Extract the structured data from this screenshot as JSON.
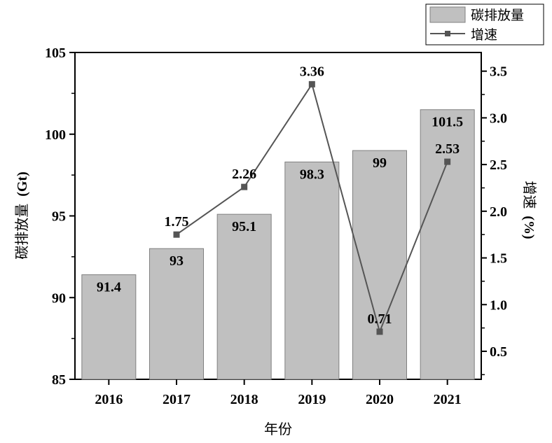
{
  "chart_data": {
    "type": "bar",
    "categories": [
      "2016",
      "2017",
      "2018",
      "2019",
      "2020",
      "2021"
    ],
    "series": [
      {
        "name": "碳排放量",
        "type": "bar",
        "axis": "left",
        "values": [
          91.4,
          93,
          95.1,
          98.3,
          99,
          101.5
        ],
        "labels": [
          "91.4",
          "93",
          "95.1",
          "98.3",
          "99",
          "101.5"
        ],
        "color": "#c0c0c0"
      },
      {
        "name": "增速",
        "type": "line",
        "axis": "right",
        "values": [
          null,
          1.75,
          2.26,
          3.36,
          0.71,
          2.53
        ],
        "labels": [
          "",
          "1.75",
          "2.26",
          "3.36",
          "0.71",
          "2.53"
        ],
        "color": "#555555"
      }
    ],
    "xlabel": "年份",
    "ylabel": "碳排放量 (Gt)",
    "ylabel_main": "碳排放量",
    "ylabel_unit": "(Gt)",
    "y2label": "增速 (%)",
    "y2label_main": "增速",
    "y2label_unit": "(%)",
    "ylim": [
      85,
      105
    ],
    "yticks": [
      "85",
      "90",
      "95",
      "100",
      "105"
    ],
    "y2lim": [
      0.2,
      3.7
    ],
    "y2ticks": [
      "0.5",
      "1.0",
      "1.5",
      "2.0",
      "2.5",
      "3.0",
      "3.5"
    ],
    "legend": {
      "position": "top-right",
      "entries": [
        "碳排放量",
        "增速"
      ]
    },
    "grid": false
  }
}
